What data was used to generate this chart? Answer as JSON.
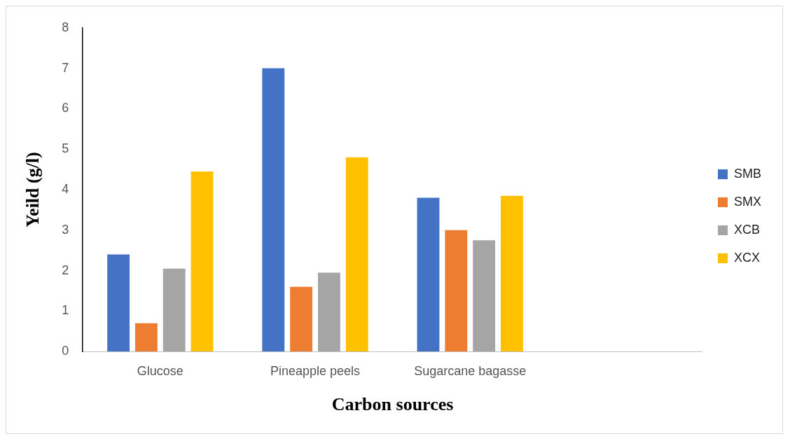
{
  "chart_data": {
    "type": "bar",
    "xlabel": "Carbon sources",
    "ylabel": "Yeild (g/l)",
    "categories": [
      "Glucose",
      "Pineapple peels",
      "Sugarcane bagasse",
      null
    ],
    "series": [
      {
        "name": "SMB",
        "color": "#4472c4",
        "values": [
          2.4,
          7.0,
          3.8,
          null
        ]
      },
      {
        "name": "SMX",
        "color": "#ed7d31",
        "values": [
          0.7,
          1.6,
          3.0,
          null
        ]
      },
      {
        "name": "XCB",
        "color": "#a5a5a5",
        "values": [
          2.05,
          1.95,
          2.75,
          null
        ]
      },
      {
        "name": "XCX",
        "color": "#ffc000",
        "values": [
          4.45,
          4.8,
          3.85,
          null
        ]
      }
    ],
    "ylim": [
      0,
      8
    ],
    "yticks": [
      0,
      1,
      2,
      3,
      4,
      5,
      6,
      7,
      8
    ],
    "grid": false,
    "legend": "right"
  }
}
